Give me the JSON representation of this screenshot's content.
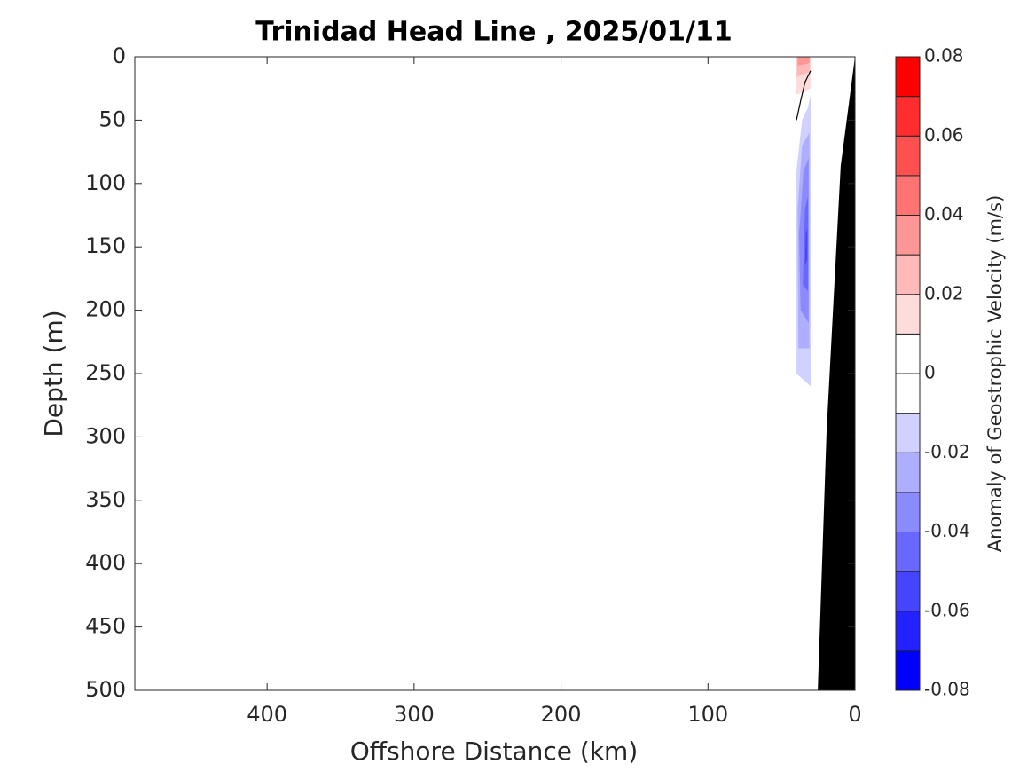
{
  "chart_data": {
    "type": "contour",
    "title": "Trinidad Head Line , 2025/01/11",
    "x_label": "Offshore Distance (km)",
    "y_label": "Depth (m)",
    "xlim": [
      490,
      0
    ],
    "xticks": [
      400,
      300,
      200,
      100,
      0
    ],
    "ylim": [
      0,
      500
    ],
    "yticks": [
      0,
      50,
      100,
      150,
      200,
      250,
      300,
      350,
      400,
      450,
      500
    ],
    "colorbar": {
      "label": "Anomaly of Geostrophic Velocity (m/s)",
      "clim": [
        -0.08,
        0.08
      ],
      "ticks": [
        -0.08,
        -0.06,
        -0.04,
        -0.02,
        0,
        0.02,
        0.04,
        0.06,
        0.08
      ],
      "colors": [
        "#0000ff",
        "#2222ff",
        "#4545ff",
        "#6868ff",
        "#8b8bff",
        "#aeaeff",
        "#d1d1ff",
        "#ffffff",
        "#ffffff",
        "#ffdcdc",
        "#ffb9b9",
        "#ff9696",
        "#ff7373",
        "#ff5050",
        "#ff2d2d",
        "#ff0000"
      ]
    },
    "regions": [
      {
        "value": 0.01,
        "x": [
          39.8,
          30.2,
          30.2,
          39.8
        ],
        "y": [
          0,
          0,
          25,
          30
        ]
      },
      {
        "value": 0.02,
        "x": [
          39.5,
          30.5,
          30.5,
          39.5
        ],
        "y": [
          0,
          0,
          12,
          16
        ]
      },
      {
        "value": 0.03,
        "x": [
          39,
          31,
          31,
          39
        ],
        "y": [
          0,
          0,
          5,
          7
        ]
      },
      {
        "value": -0.01,
        "x": [
          36,
          32,
          30.2,
          30.2,
          39.8,
          39.8
        ],
        "y": [
          50,
          40,
          30,
          260,
          250,
          90
        ]
      },
      {
        "value": -0.02,
        "x": [
          36,
          31,
          31,
          38.5,
          39
        ],
        "y": [
          70,
          60,
          230,
          230,
          120
        ]
      },
      {
        "value": -0.03,
        "x": [
          35,
          31.5,
          31.5,
          37,
          38
        ],
        "y": [
          90,
          80,
          210,
          200,
          140
        ]
      },
      {
        "value": -0.04,
        "x": [
          34,
          32,
          32,
          35.5
        ],
        "y": [
          120,
          110,
          185,
          180
        ]
      },
      {
        "value": -0.05,
        "x": [
          33.5,
          32.5,
          32.5,
          34
        ],
        "y": [
          140,
          135,
          160,
          165
        ]
      }
    ],
    "contour_lines": [
      {
        "value": 0,
        "x": [
          30.2,
          34,
          37,
          39.8
        ],
        "y": [
          11,
          20,
          35,
          50
        ]
      }
    ],
    "bathymetry": {
      "color": "#000000",
      "x": [
        0,
        9.7,
        19.3,
        25.3
      ],
      "y": [
        0,
        86,
        295,
        500
      ]
    }
  }
}
